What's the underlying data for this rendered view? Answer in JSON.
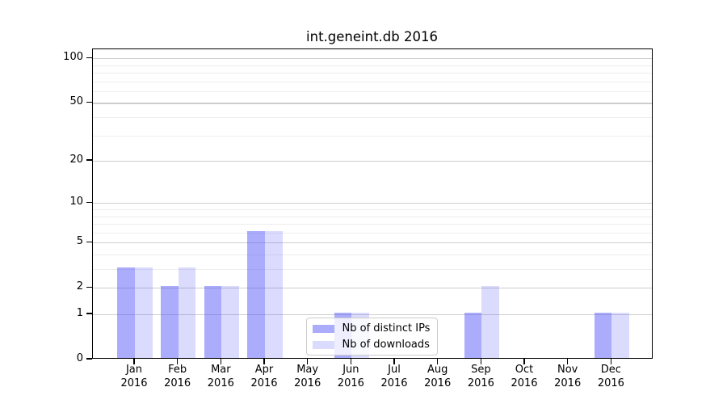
{
  "chart_data": {
    "type": "bar",
    "title": "int.geneint.db 2016",
    "x_year": "2016",
    "categories": [
      "Jan",
      "Feb",
      "Mar",
      "Apr",
      "May",
      "Jun",
      "Jul",
      "Aug",
      "Sep",
      "Oct",
      "Nov",
      "Dec"
    ],
    "series": [
      {
        "name": "Nb of distinct IPs",
        "color": "rgba(85,85,249,0.49)",
        "values": [
          3,
          2,
          2,
          6,
          0,
          1,
          0,
          0,
          1,
          0,
          0,
          1
        ]
      },
      {
        "name": "Nb of downloads",
        "color": "rgba(85,85,249,0.21)",
        "values": [
          3,
          3,
          2,
          6,
          0,
          1,
          0,
          0,
          2,
          0,
          0,
          1
        ]
      }
    ],
    "y_axis": {
      "scale": "log10(1+x)",
      "major_ticks": [
        0,
        1,
        2,
        5,
        10,
        20,
        50,
        100
      ],
      "minor_ticks": [
        3,
        4,
        6,
        7,
        8,
        9,
        30,
        40,
        60,
        70,
        80,
        90
      ],
      "ylim": [
        0,
        115
      ]
    },
    "grid": {
      "major_color": "#cdcdcd",
      "minor_color": "#ededed",
      "enabled": true
    },
    "legend": {
      "position": "lower center",
      "entries": [
        "Nb of distinct IPs",
        "Nb of downloads"
      ]
    },
    "colors": {
      "bar_dark_composite": "#acacfc",
      "bar_light_composite": "#dbdbfc",
      "spine": "#000000"
    }
  }
}
